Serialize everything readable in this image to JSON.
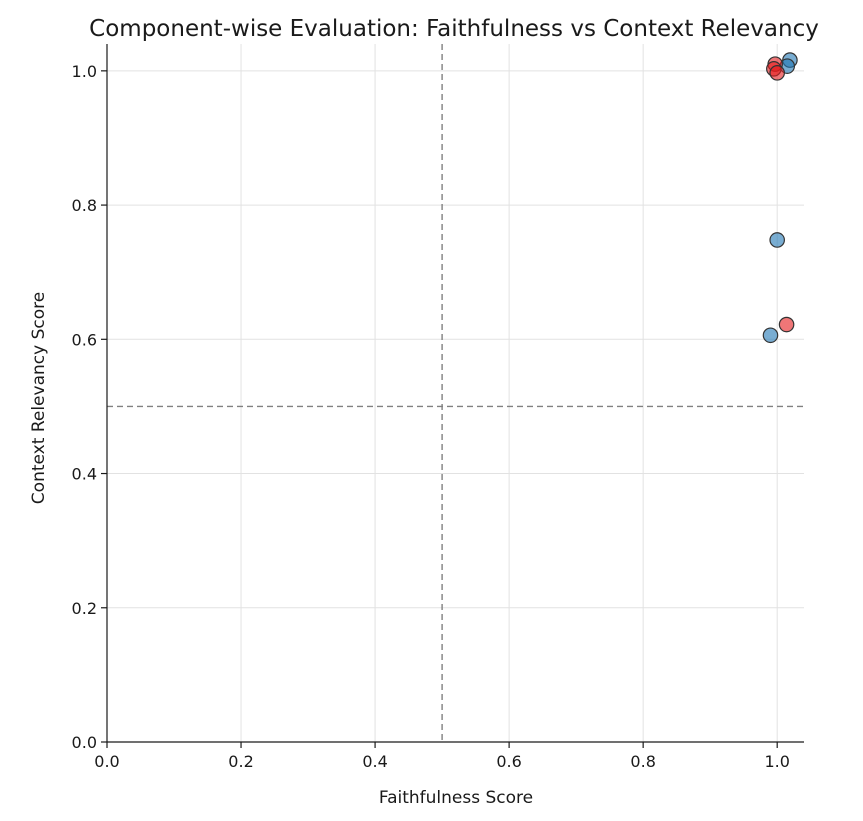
{
  "chart_data": {
    "type": "scatter",
    "title": "Component-wise Evaluation: Faithfulness vs Context Relevancy",
    "xlabel": "Faithfulness Score",
    "ylabel": "Context Relevancy Score",
    "xlim": [
      0.0,
      1.04
    ],
    "ylim": [
      0.0,
      1.04
    ],
    "xticks": [
      "0.0",
      "0.2",
      "0.4",
      "0.6",
      "0.8",
      "1.0"
    ],
    "yticks": [
      "0.0",
      "0.2",
      "0.4",
      "0.6",
      "0.8",
      "1.0"
    ],
    "grid": true,
    "reference_lines": {
      "x": 0.5,
      "y": 0.5
    },
    "series": [
      {
        "color": "#1f77b4",
        "points": [
          {
            "x": 1.019,
            "y": 1.016
          },
          {
            "x": 1.015,
            "y": 1.007
          },
          {
            "x": 1.0,
            "y": 0.748
          },
          {
            "x": 0.99,
            "y": 0.606
          }
        ]
      },
      {
        "color": "#e41a1c",
        "points": [
          {
            "x": 0.997,
            "y": 1.01
          },
          {
            "x": 0.995,
            "y": 1.003
          },
          {
            "x": 1.0,
            "y": 0.997
          },
          {
            "x": 1.014,
            "y": 0.622
          }
        ]
      }
    ]
  }
}
